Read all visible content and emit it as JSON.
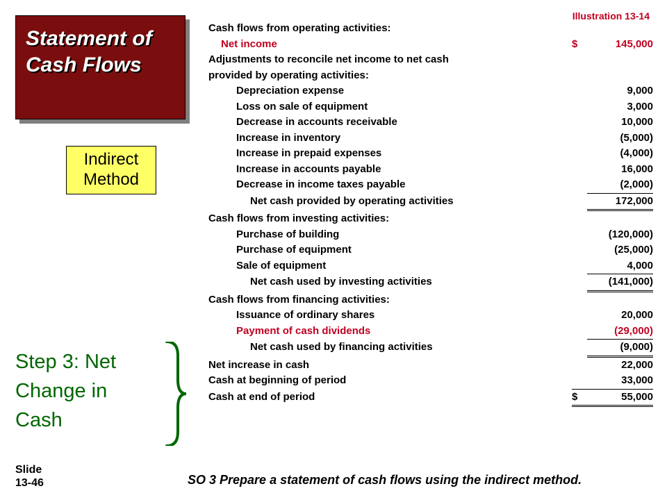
{
  "colors": {
    "title_bg": "#7a0e0e",
    "title_text": "#ffffff",
    "method_bg": "#ffff66",
    "accent_red": "#c00020",
    "step_green": "#006600",
    "page_bg": "#ffffff"
  },
  "title": "Statement of Cash Flows",
  "method_box": "Indirect Method",
  "illustration": "Illustration 13-14",
  "step_label": "Step 3: Net Change in Cash",
  "slide_label_top": "Slide",
  "slide_label_num": "13-46",
  "so_text": "SO 3  Prepare a statement of cash flows using the indirect method.",
  "statement": {
    "rows": [
      {
        "label": "Cash flows from operating activities:",
        "indent": 0
      },
      {
        "label": "Net income",
        "indent": 1,
        "currency": "$",
        "amount": "145,000",
        "red": true
      },
      {
        "label": "Adjustments to reconcile net income to net cash",
        "indent": 0
      },
      {
        "label": "provided by operating activities:",
        "indent": 0
      },
      {
        "label": "Depreciation expense",
        "indent": 2,
        "amount": "9,000"
      },
      {
        "label": "Loss on sale of equipment",
        "indent": 2,
        "amount": "3,000"
      },
      {
        "label": "Decrease in accounts receivable",
        "indent": 2,
        "amount": "10,000"
      },
      {
        "label": "Increase in inventory",
        "indent": 2,
        "amount": "(5,000)"
      },
      {
        "label": "Increase in prepaid expenses",
        "indent": 2,
        "amount": "(4,000)"
      },
      {
        "label": "Increase in accounts payable",
        "indent": 2,
        "amount": "16,000"
      },
      {
        "label": "Decrease in income taxes payable",
        "indent": 2,
        "amount": "(2,000)"
      },
      {
        "label": "Net cash provided by operating activities",
        "indent": 3,
        "amount": "172,000",
        "subtotal": true,
        "double": true
      },
      {
        "label": "Cash flows from investing activities:",
        "indent": 0
      },
      {
        "label": "Purchase of building",
        "indent": 2,
        "amount": "(120,000)"
      },
      {
        "label": "Purchase of equipment",
        "indent": 2,
        "amount": "(25,000)"
      },
      {
        "label": "Sale of equipment",
        "indent": 2,
        "amount": "4,000"
      },
      {
        "label": "Net cash used by investing activities",
        "indent": 3,
        "amount": "(141,000)",
        "subtotal": true,
        "double": true
      },
      {
        "label": "Cash flows from financing activities:",
        "indent": 0
      },
      {
        "label": "Issuance of ordinary shares",
        "indent": 2,
        "amount": "20,000"
      },
      {
        "label": "Payment of cash dividends",
        "indent": 2,
        "amount": "(29,000)",
        "red": true
      },
      {
        "label": "Net cash used by financing activities",
        "indent": 3,
        "amount": "(9,000)",
        "subtotal": true,
        "double": true
      },
      {
        "label": "Net increase in cash",
        "indent": 0,
        "amount": "22,000"
      },
      {
        "label": "Cash at beginning of period",
        "indent": 0,
        "amount": "33,000"
      },
      {
        "label": "Cash at end of period",
        "indent": 0,
        "currency": "$",
        "amount": "55,000",
        "total": true
      }
    ]
  }
}
